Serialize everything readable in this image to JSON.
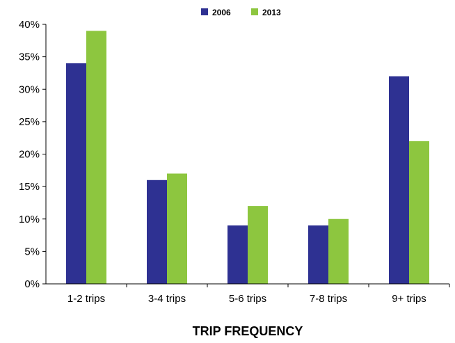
{
  "chart_data": {
    "type": "bar",
    "categories": [
      "1-2 trips",
      "3-4 trips",
      "5-6 trips",
      "7-8 trips",
      "9+ trips"
    ],
    "series": [
      {
        "name": "2006",
        "values": [
          34,
          16,
          9,
          9,
          32
        ],
        "color": "#2E3192"
      },
      {
        "name": "2013",
        "values": [
          39,
          17,
          12,
          10,
          22
        ],
        "color": "#8DC63F"
      }
    ],
    "xlabel": "TRIP FREQUENCY",
    "ylabel": "",
    "ylim": [
      0,
      40
    ],
    "yticks": [
      0,
      5,
      10,
      15,
      20,
      25,
      30,
      35,
      40
    ],
    "ytick_labels": [
      "0%",
      "5%",
      "10%",
      "15%",
      "20%",
      "25%",
      "30%",
      "35%",
      "40%"
    ],
    "grid": false,
    "legend_position": "top-center"
  }
}
